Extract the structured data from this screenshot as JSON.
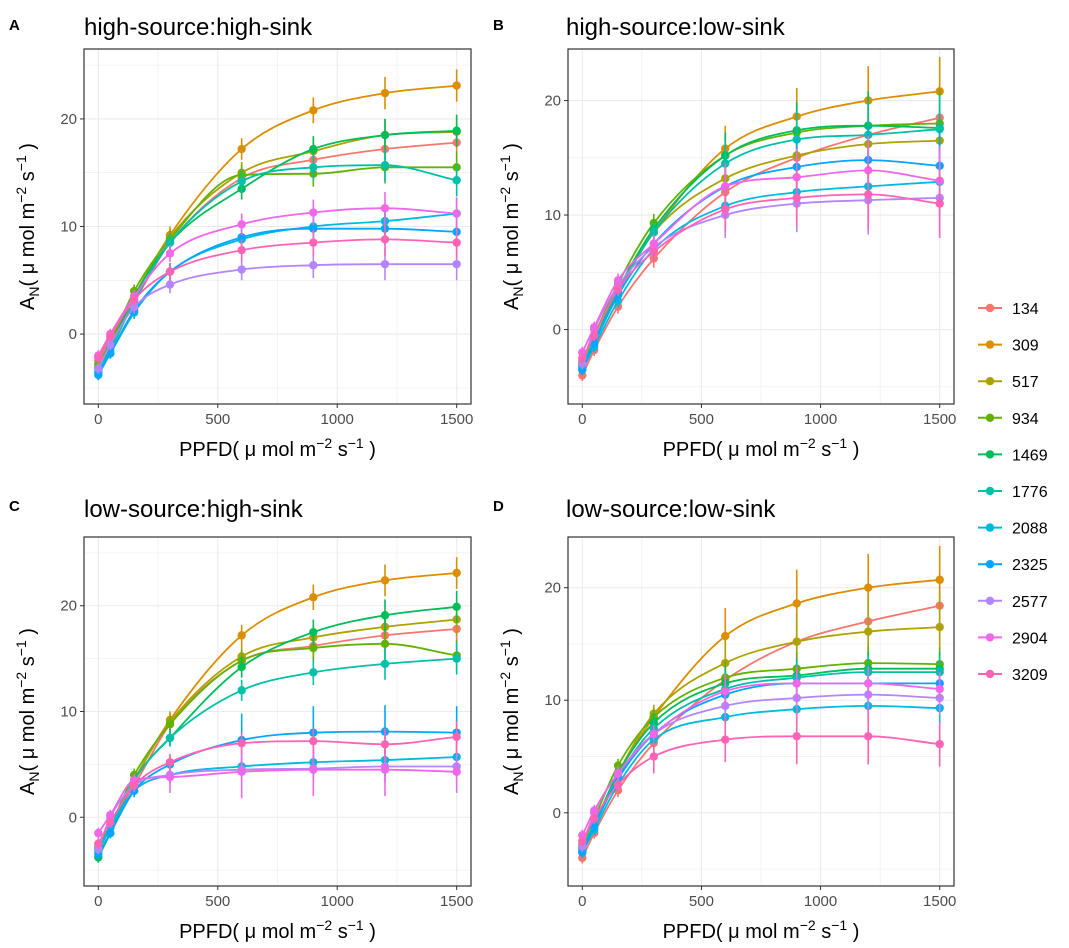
{
  "series_names": [
    "134",
    "309",
    "517",
    "934",
    "1469",
    "1776",
    "2088",
    "2325",
    "2577",
    "2904",
    "3209"
  ],
  "colors": [
    "#F8766D",
    "#DB8E00",
    "#AEA200",
    "#64B200",
    "#00BD5C",
    "#00C1A7",
    "#00BADE",
    "#00A6FF",
    "#B385FF",
    "#EF67EB",
    "#FF63B6"
  ],
  "chart_data": [
    {
      "panel": "A",
      "type": "line",
      "title": "high-source:high-sink",
      "xlabel": "PPFD( μ mol m−2 s−1 )",
      "ylabel": "AN( μ mol m−2 s−1 )",
      "xlim": [
        -60,
        1560
      ],
      "ylim": [
        -6.5,
        26.5
      ],
      "xticks": [
        0,
        500,
        1000,
        1500
      ],
      "yticks": [
        0,
        10,
        20
      ],
      "x": [
        0,
        50,
        150,
        300,
        600,
        900,
        1200,
        1500
      ],
      "series": [
        {
          "name": "134",
          "values": [
            -2.5,
            -0.5,
            3.0,
            8.5,
            14.5,
            16.2,
            17.2,
            17.8
          ],
          "err": [
            0.5,
            0.5,
            0.6,
            0.8,
            1.0,
            1.2,
            1.5,
            1.5
          ]
        },
        {
          "name": "309",
          "values": [
            -3.0,
            -1.0,
            3.5,
            9.2,
            17.2,
            20.8,
            22.4,
            23.1
          ],
          "err": [
            0.5,
            0.5,
            0.6,
            0.8,
            1.0,
            1.2,
            1.5,
            1.5
          ]
        },
        {
          "name": "517",
          "values": [
            -3.0,
            -1.0,
            3.5,
            9.0,
            15.0,
            17.0,
            18.5,
            18.8
          ],
          "err": [
            0.5,
            0.5,
            0.6,
            0.8,
            1.0,
            1.2,
            1.5,
            1.5
          ]
        },
        {
          "name": "934",
          "values": [
            -2.8,
            -0.8,
            4.0,
            8.8,
            14.8,
            14.9,
            15.5,
            15.5
          ],
          "err": [
            0.5,
            0.5,
            0.6,
            0.8,
            1.0,
            1.2,
            1.5,
            1.5
          ]
        },
        {
          "name": "1469",
          "values": [
            -3.2,
            -1.2,
            3.5,
            8.5,
            13.5,
            17.2,
            18.5,
            18.9
          ],
          "err": [
            0.5,
            0.5,
            0.6,
            0.8,
            1.0,
            1.2,
            1.5,
            1.5
          ]
        },
        {
          "name": "1776",
          "values": [
            -3.5,
            -1.5,
            3.0,
            8.5,
            14.2,
            15.5,
            15.7,
            14.3
          ],
          "err": [
            0.5,
            0.5,
            0.6,
            0.8,
            1.0,
            1.2,
            1.5,
            1.5
          ]
        },
        {
          "name": "2088",
          "values": [
            -3.5,
            -1.8,
            2.0,
            5.8,
            8.8,
            10.0,
            10.5,
            11.2
          ],
          "err": [
            0.5,
            0.5,
            0.6,
            0.8,
            1.0,
            1.2,
            1.5,
            1.5
          ]
        },
        {
          "name": "2325",
          "values": [
            -3.8,
            -1.8,
            2.2,
            5.8,
            9.0,
            9.8,
            9.8,
            9.5
          ],
          "err": [
            0.5,
            0.5,
            0.6,
            0.8,
            1.0,
            1.2,
            1.5,
            1.5
          ]
        },
        {
          "name": "2577",
          "values": [
            -3.2,
            -1.0,
            2.5,
            4.6,
            6.0,
            6.4,
            6.5,
            6.5
          ],
          "err": [
            0.5,
            0.5,
            0.6,
            0.8,
            1.0,
            1.2,
            1.5,
            1.5
          ]
        },
        {
          "name": "2904",
          "values": [
            -2.0,
            0.0,
            3.5,
            7.5,
            10.2,
            11.3,
            11.7,
            11.2
          ],
          "err": [
            0.5,
            0.5,
            0.6,
            0.8,
            1.0,
            1.2,
            1.5,
            1.5
          ]
        },
        {
          "name": "3209",
          "values": [
            -2.2,
            -0.2,
            3.2,
            5.8,
            7.8,
            8.5,
            8.8,
            8.5
          ],
          "err": [
            0.5,
            0.5,
            0.6,
            0.8,
            1.0,
            1.2,
            1.5,
            1.5
          ]
        }
      ]
    },
    {
      "panel": "B",
      "type": "line",
      "title": "high-source:low-sink",
      "xlabel": "PPFD( μ mol m−2 s−1 )",
      "ylabel": "AN( μ mol m−2 s−1 )",
      "xlim": [
        -60,
        1560
      ],
      "ylim": [
        -6.5,
        24.5
      ],
      "xticks": [
        0,
        500,
        1000,
        1500
      ],
      "yticks": [
        0,
        10,
        20
      ],
      "x": [
        0,
        50,
        150,
        300,
        600,
        900,
        1200,
        1500
      ],
      "series": [
        {
          "name": "134",
          "values": [
            -4.0,
            -1.8,
            2.0,
            6.2,
            12.0,
            15.0,
            17.0,
            18.5
          ],
          "err": [
            0.5,
            0.5,
            0.6,
            0.8,
            2.0,
            2.5,
            3.0,
            3.0
          ]
        },
        {
          "name": "309",
          "values": [
            -3.0,
            -1.0,
            3.5,
            8.5,
            15.8,
            18.6,
            20.0,
            20.8
          ],
          "err": [
            0.5,
            0.5,
            0.6,
            0.8,
            2.0,
            2.5,
            3.0,
            3.0
          ]
        },
        {
          "name": "517",
          "values": [
            -3.0,
            -1.0,
            3.5,
            8.5,
            13.2,
            15.2,
            16.2,
            16.5
          ],
          "err": [
            0.5,
            0.5,
            0.6,
            0.8,
            2.0,
            2.5,
            3.0,
            3.0
          ]
        },
        {
          "name": "934",
          "values": [
            -2.8,
            -0.5,
            4.0,
            9.3,
            15.2,
            17.2,
            17.8,
            18.0
          ],
          "err": [
            0.5,
            0.5,
            0.6,
            0.8,
            2.0,
            2.5,
            3.0,
            3.0
          ]
        },
        {
          "name": "1469",
          "values": [
            -3.2,
            -1.0,
            3.5,
            8.8,
            15.2,
            17.4,
            17.8,
            17.6
          ],
          "err": [
            0.5,
            0.5,
            0.6,
            0.8,
            2.0,
            2.5,
            3.0,
            3.0
          ]
        },
        {
          "name": "1776",
          "values": [
            -3.2,
            -1.0,
            3.2,
            8.5,
            14.5,
            16.6,
            17.0,
            17.5
          ],
          "err": [
            0.5,
            0.5,
            0.6,
            0.8,
            2.0,
            2.5,
            3.0,
            3.0
          ]
        },
        {
          "name": "2088",
          "values": [
            -3.5,
            -1.5,
            2.5,
            7.0,
            10.8,
            12.0,
            12.5,
            12.9
          ],
          "err": [
            0.5,
            0.5,
            0.6,
            0.8,
            2.0,
            2.5,
            3.0,
            3.0
          ]
        },
        {
          "name": "2325",
          "values": [
            -3.5,
            -1.2,
            3.0,
            7.5,
            12.5,
            14.2,
            14.8,
            14.3
          ],
          "err": [
            0.5,
            0.5,
            0.6,
            0.8,
            2.0,
            2.5,
            3.0,
            3.0
          ]
        },
        {
          "name": "2577",
          "values": [
            -3.0,
            0.0,
            3.8,
            7.2,
            10.0,
            11.0,
            11.3,
            11.5
          ],
          "err": [
            0.5,
            0.5,
            0.6,
            0.8,
            2.0,
            2.5,
            3.0,
            3.0
          ]
        },
        {
          "name": "2904",
          "values": [
            -2.0,
            0.2,
            4.3,
            7.5,
            12.5,
            13.3,
            13.9,
            13.0
          ],
          "err": [
            0.5,
            0.5,
            0.6,
            0.8,
            2.0,
            2.5,
            3.0,
            3.0
          ]
        },
        {
          "name": "3209",
          "values": [
            -2.5,
            -0.5,
            3.5,
            6.8,
            10.5,
            11.5,
            11.8,
            11.0
          ],
          "err": [
            0.5,
            0.5,
            0.6,
            0.8,
            2.0,
            2.5,
            3.0,
            3.0
          ]
        }
      ]
    },
    {
      "panel": "C",
      "type": "line",
      "title": "low-source:high-sink",
      "xlabel": "PPFD( μ mol m−2 s−1 )",
      "ylabel": "AN( μ mol m−2 s−1 )",
      "xlim": [
        -60,
        1560
      ],
      "ylim": [
        -6.5,
        26.5
      ],
      "xticks": [
        0,
        500,
        1000,
        1500
      ],
      "yticks": [
        0,
        10,
        20
      ],
      "x": [
        0,
        50,
        150,
        300,
        600,
        900,
        1200,
        1500
      ],
      "series": [
        {
          "name": "134",
          "values": [
            -2.5,
            -0.5,
            3.0,
            8.8,
            14.8,
            16.2,
            17.2,
            17.8
          ],
          "err": [
            0.5,
            0.5,
            0.6,
            0.8,
            1.0,
            1.2,
            1.5,
            1.5
          ]
        },
        {
          "name": "309",
          "values": [
            -3.0,
            -1.0,
            3.5,
            9.2,
            17.2,
            20.8,
            22.4,
            23.1
          ],
          "err": [
            0.5,
            0.5,
            0.6,
            0.8,
            1.0,
            1.2,
            1.5,
            1.5
          ]
        },
        {
          "name": "517",
          "values": [
            -3.0,
            -1.0,
            3.5,
            9.0,
            15.2,
            17.0,
            18.0,
            18.7
          ],
          "err": [
            0.5,
            0.5,
            0.6,
            0.8,
            1.0,
            1.2,
            1.5,
            1.5
          ]
        },
        {
          "name": "934",
          "values": [
            -2.8,
            -0.8,
            4.0,
            8.8,
            14.8,
            16.0,
            16.4,
            15.3
          ],
          "err": [
            0.5,
            0.5,
            0.6,
            0.8,
            1.0,
            1.2,
            1.5,
            1.5
          ]
        },
        {
          "name": "1469",
          "values": [
            -3.8,
            -1.5,
            3.5,
            7.5,
            14.2,
            17.5,
            19.1,
            19.9
          ],
          "err": [
            0.5,
            0.5,
            0.6,
            0.8,
            1.0,
            1.2,
            1.5,
            1.5
          ]
        },
        {
          "name": "1776",
          "values": [
            -3.2,
            -1.0,
            3.5,
            7.5,
            12.0,
            13.7,
            14.5,
            15.0
          ],
          "err": [
            0.5,
            0.5,
            0.6,
            0.8,
            1.0,
            1.2,
            1.5,
            1.5
          ]
        },
        {
          "name": "2088",
          "values": [
            -3.0,
            -1.0,
            2.5,
            4.0,
            4.8,
            5.2,
            5.4,
            5.7
          ],
          "err": [
            0.5,
            0.5,
            0.6,
            0.8,
            1.0,
            1.2,
            1.5,
            1.5
          ]
        },
        {
          "name": "2325",
          "values": [
            -3.5,
            -1.5,
            2.5,
            5.0,
            7.3,
            8.0,
            8.1,
            8.0
          ],
          "err": [
            0.5,
            0.5,
            0.6,
            0.8,
            2.5,
            2.5,
            2.5,
            2.5
          ]
        },
        {
          "name": "2577",
          "values": [
            -3.0,
            0.0,
            3.0,
            4.0,
            4.5,
            4.6,
            4.8,
            4.8
          ],
          "err": [
            0.5,
            0.5,
            0.6,
            0.8,
            1.0,
            1.2,
            1.5,
            1.5
          ]
        },
        {
          "name": "2904",
          "values": [
            -1.5,
            0.2,
            3.5,
            3.8,
            4.3,
            4.5,
            4.5,
            4.3
          ],
          "err": [
            0.5,
            0.5,
            0.6,
            1.5,
            2.5,
            2.5,
            2.5,
            2.0
          ]
        },
        {
          "name": "3209",
          "values": [
            -2.5,
            -0.5,
            3.0,
            5.2,
            7.0,
            7.2,
            6.9,
            7.6
          ],
          "err": [
            0.5,
            0.5,
            0.6,
            0.8,
            1.0,
            1.2,
            1.5,
            1.5
          ]
        }
      ]
    },
    {
      "panel": "D",
      "type": "line",
      "title": "low-source:low-sink",
      "xlabel": "PPFD( μ mol m−2 s−1 )",
      "ylabel": "AN( μ mol m−2 s−1 )",
      "xlim": [
        -60,
        1560
      ],
      "ylim": [
        -6.5,
        24.5
      ],
      "xticks": [
        0,
        500,
        1000,
        1500
      ],
      "yticks": [
        0,
        10,
        20
      ],
      "x": [
        0,
        50,
        150,
        300,
        600,
        900,
        1200,
        1500
      ],
      "series": [
        {
          "name": "134",
          "values": [
            -4.0,
            -1.8,
            2.0,
            6.2,
            11.8,
            15.2,
            17.0,
            18.4
          ],
          "err": [
            0.5,
            0.5,
            0.6,
            0.8,
            2.0,
            2.5,
            3.0,
            3.0
          ]
        },
        {
          "name": "309",
          "values": [
            -3.0,
            -1.0,
            3.5,
            8.5,
            15.7,
            18.6,
            20.0,
            20.7
          ],
          "err": [
            0.5,
            0.5,
            0.6,
            0.8,
            2.5,
            3.0,
            3.0,
            3.0
          ]
        },
        {
          "name": "517",
          "values": [
            -3.0,
            -1.0,
            3.5,
            8.8,
            13.3,
            15.2,
            16.1,
            16.5
          ],
          "err": [
            0.5,
            0.5,
            0.6,
            0.8,
            2.0,
            2.5,
            3.0,
            3.0
          ]
        },
        {
          "name": "934",
          "values": [
            -2.8,
            -0.5,
            4.2,
            8.5,
            12.0,
            12.8,
            13.3,
            13.2
          ],
          "err": [
            0.5,
            0.5,
            0.6,
            0.8,
            1.5,
            1.5,
            1.5,
            1.5
          ]
        },
        {
          "name": "1469",
          "values": [
            -3.2,
            -1.0,
            3.5,
            8.0,
            11.5,
            12.2,
            12.8,
            12.8
          ],
          "err": [
            0.5,
            0.5,
            0.6,
            0.8,
            1.5,
            1.5,
            1.5,
            1.5
          ]
        },
        {
          "name": "1776",
          "values": [
            -3.2,
            -1.0,
            3.2,
            7.5,
            11.0,
            12.0,
            12.5,
            12.5
          ],
          "err": [
            0.5,
            0.5,
            0.6,
            0.8,
            1.5,
            1.5,
            1.5,
            1.5
          ]
        },
        {
          "name": "2088",
          "values": [
            -3.5,
            -1.5,
            2.5,
            6.5,
            8.5,
            9.2,
            9.5,
            9.3
          ],
          "err": [
            0.5,
            0.5,
            0.6,
            0.8,
            1.0,
            1.2,
            1.5,
            1.5
          ]
        },
        {
          "name": "2325",
          "values": [
            -3.5,
            -1.2,
            3.0,
            7.0,
            10.5,
            11.5,
            11.5,
            11.5
          ],
          "err": [
            0.5,
            0.5,
            0.6,
            0.8,
            1.5,
            1.5,
            1.5,
            1.5
          ]
        },
        {
          "name": "2577",
          "values": [
            -3.0,
            0.0,
            3.5,
            7.0,
            9.5,
            10.2,
            10.5,
            10.2
          ],
          "err": [
            0.5,
            0.5,
            0.6,
            0.8,
            1.5,
            1.5,
            1.5,
            1.5
          ]
        },
        {
          "name": "2904",
          "values": [
            -2.0,
            0.2,
            3.5,
            7.0,
            10.8,
            11.5,
            11.5,
            11.0
          ],
          "err": [
            0.5,
            0.5,
            0.6,
            0.8,
            1.5,
            1.5,
            1.5,
            1.5
          ]
        },
        {
          "name": "3209",
          "values": [
            -2.5,
            -0.5,
            2.5,
            5.0,
            6.5,
            6.8,
            6.8,
            6.1
          ],
          "err": [
            0.5,
            0.5,
            0.6,
            1.5,
            2.0,
            2.5,
            2.5,
            2.0
          ]
        }
      ]
    }
  ]
}
